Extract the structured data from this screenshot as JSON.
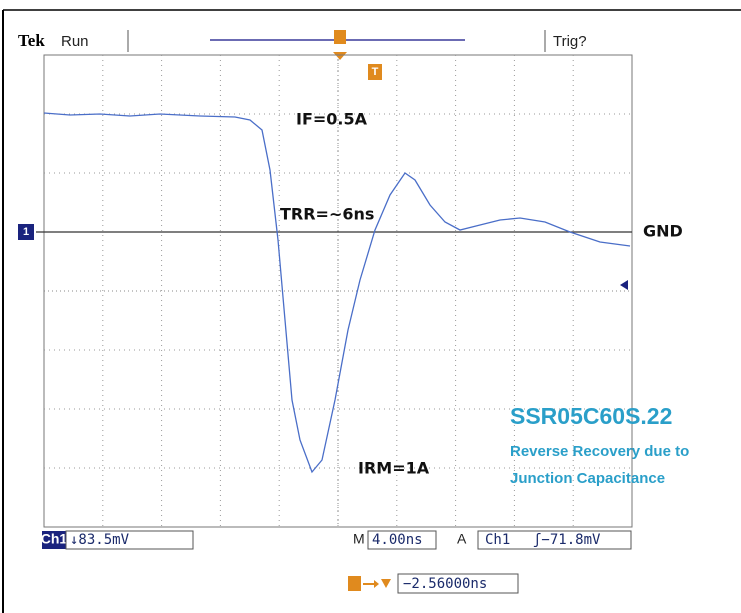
{
  "header": {
    "brand": "Tek",
    "status": "Run",
    "trigger": "Trig?"
  },
  "annotations": {
    "forward": "IF=0.5A",
    "recovery_time": "TRR=~6ns",
    "ground": "GND",
    "reverse_peak": "IRM=1A"
  },
  "caption": {
    "part": "SSR05C60S.22",
    "line1": "Reverse Recovery due to",
    "line2": "Junction Capacitance"
  },
  "markers": {
    "channel": "1",
    "trigger": "T"
  },
  "footer": {
    "channel": "Ch1",
    "scale": "↓83.5mV",
    "time_label": "M",
    "time_scale": "4.00ns",
    "acq_label": "A",
    "trig_channel": "Ch1",
    "trig_level": "ʃ−71.8mV",
    "delay": "−2.56000ns"
  }
}
